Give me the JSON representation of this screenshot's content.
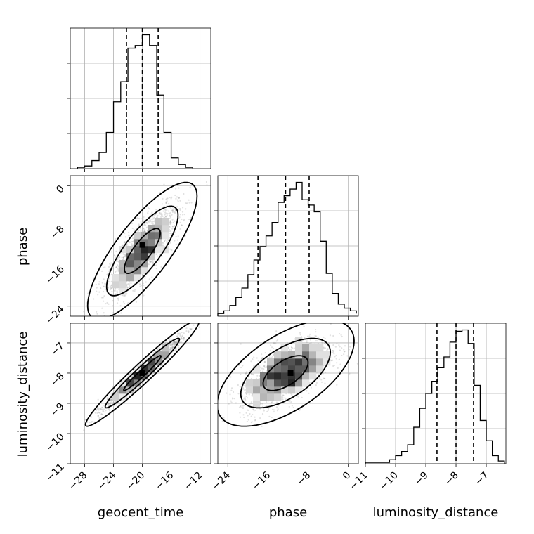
{
  "chart_data": {
    "type": "corner",
    "parameters": [
      "geocent_time",
      "phase",
      "luminosity_distance"
    ],
    "axes": {
      "geocent_time": {
        "range": [
          -30,
          -10.5
        ],
        "ticks": [
          -28,
          -24,
          -20,
          -16,
          -12
        ],
        "tick_labels": [
          "−28",
          "−24",
          "−20",
          "−16",
          "−12"
        ]
      },
      "phase": {
        "range": [
          -26,
          2
        ],
        "ticks": [
          -24,
          -16,
          -8,
          0
        ],
        "tick_labels": [
          "−24",
          "−16",
          "−8",
          "0"
        ]
      },
      "luminosity_distance": {
        "range": [
          -11,
          -6.35
        ],
        "ticks": [
          -11,
          -10,
          -9,
          -8,
          -7
        ],
        "tick_labels": [
          "−11",
          "−10",
          "−9",
          "−8",
          "−7"
        ]
      }
    },
    "marginals": {
      "geocent_time": {
        "bin_edges": [
          -29.0,
          -28.0,
          -27.0,
          -26.0,
          -25.0,
          -24.0,
          -23.0,
          -22.0,
          -21.0,
          -20.0,
          -19.0,
          -18.0,
          -17.0,
          -16.0,
          -15.0,
          -14.0,
          -13.0
        ],
        "counts": [
          1,
          2,
          6,
          12,
          27,
          50,
          65,
          90,
          92,
          100,
          92,
          55,
          27,
          8,
          3,
          1
        ],
        "quantiles": [
          -22.2,
          -20.0,
          -17.8
        ]
      },
      "phase": {
        "bin_edges": [
          -26.0,
          -24.8,
          -23.6,
          -22.4,
          -21.2,
          -20.0,
          -18.8,
          -17.6,
          -16.4,
          -15.2,
          -14.0,
          -12.8,
          -11.6,
          -10.4,
          -9.2,
          -8.0,
          -6.8,
          -5.6,
          -4.4,
          -3.2,
          -2.0,
          -0.8,
          0.4,
          1.6
        ],
        "counts": [
          2,
          4,
          8,
          14,
          21,
          31,
          42,
          52,
          60,
          70,
          85,
          90,
          95,
          100,
          87,
          83,
          78,
          56,
          32,
          17,
          9,
          6,
          4,
          2
        ],
        "quantiles": [
          -18.0,
          -12.5,
          -7.8
        ]
      },
      "luminosity_distance": {
        "bin_edges": [
          -11.0,
          -10.8,
          -10.6,
          -10.4,
          -10.2,
          -10.0,
          -9.8,
          -9.6,
          -9.4,
          -9.2,
          -9.0,
          -8.8,
          -8.6,
          -8.4,
          -8.2,
          -8.0,
          -7.8,
          -7.6,
          -7.4,
          -7.2,
          -7.0,
          -6.8,
          -6.6,
          -6.4
        ],
        "counts": [
          1,
          1,
          1,
          1,
          3,
          6,
          9,
          14,
          27,
          41,
          52,
          61,
          71,
          79,
          90,
          98,
          99,
          89,
          58,
          32,
          17,
          6,
          2
        ],
        "quantiles": [
          -8.63,
          -8.0,
          -7.42
        ]
      }
    },
    "pairs": [
      {
        "x": "geocent_time",
        "y": "phase",
        "mean": [
          -20.0,
          -13.0
        ],
        "sigma": [
          2.5,
          4.5
        ],
        "correlation": 0.8,
        "density_peak": [
          -20.0,
          -11.8
        ],
        "contour_levels": [
          0.39,
          0.86,
          0.99
        ]
      },
      {
        "x": "geocent_time",
        "y": "luminosity_distance",
        "mean": [
          -20.0,
          -8.0
        ],
        "sigma": [
          2.6,
          0.58
        ],
        "correlation": 0.97,
        "density_peak": [
          -20.0,
          -8.0
        ],
        "contour_levels": [
          0.39,
          0.86,
          0.99
        ]
      },
      {
        "x": "phase",
        "y": "luminosity_distance",
        "mean": [
          -12.5,
          -8.0
        ],
        "sigma": [
          4.5,
          0.58
        ],
        "correlation": 0.6,
        "density_peak": [
          -11.5,
          -8.0
        ],
        "contour_levels": [
          0.39,
          0.86,
          0.99
        ]
      }
    ]
  }
}
